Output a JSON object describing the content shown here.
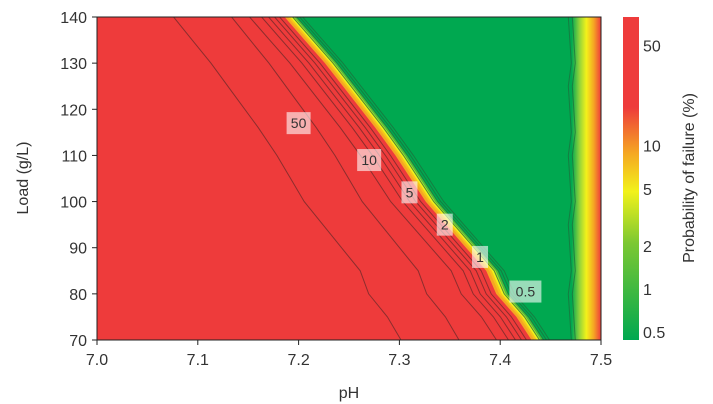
{
  "chart_data": {
    "type": "heatmap",
    "xlabel": "pH",
    "ylabel": "Load (g/L)",
    "xlim": [
      7.0,
      7.5
    ],
    "ylim": [
      70,
      140
    ],
    "x_ticks": [
      "7.0",
      "7.1",
      "7.2",
      "7.3",
      "7.4",
      "7.5"
    ],
    "y_ticks": [
      "70",
      "80",
      "90",
      "100",
      "110",
      "120",
      "130",
      "140"
    ],
    "colorbar": {
      "label": "Probability of failure (%)",
      "scale": "log",
      "ticks": [
        "0.5",
        "1",
        "2",
        "5",
        "10",
        "50"
      ],
      "colors": [
        "#00a850",
        "#f2f21a",
        "#f5a623",
        "#ee3b3b"
      ]
    },
    "contour_labels": [
      {
        "text": "50",
        "pH": 7.2,
        "load": 117
      },
      {
        "text": "10",
        "pH": 7.27,
        "load": 109
      },
      {
        "text": "5",
        "pH": 7.31,
        "load": 102
      },
      {
        "text": "2",
        "pH": 7.345,
        "load": 95
      },
      {
        "text": "1",
        "pH": 7.38,
        "load": 88
      },
      {
        "text": "0.5",
        "pH": 7.425,
        "load": 80.5
      }
    ],
    "green_region_boundary": [
      {
        "pH": 7.195,
        "load": 140
      },
      {
        "pH": 7.215,
        "load": 135
      },
      {
        "pH": 7.235,
        "load": 130
      },
      {
        "pH": 7.26,
        "load": 123
      },
      {
        "pH": 7.285,
        "load": 116
      },
      {
        "pH": 7.305,
        "load": 110
      },
      {
        "pH": 7.32,
        "load": 105
      },
      {
        "pH": 7.335,
        "load": 100
      },
      {
        "pH": 7.355,
        "load": 95
      },
      {
        "pH": 7.375,
        "load": 90
      },
      {
        "pH": 7.395,
        "load": 85
      },
      {
        "pH": 7.405,
        "load": 80
      },
      {
        "pH": 7.425,
        "load": 75
      },
      {
        "pH": 7.44,
        "load": 70
      }
    ],
    "green_region_right_edge_pH": 7.475
  }
}
